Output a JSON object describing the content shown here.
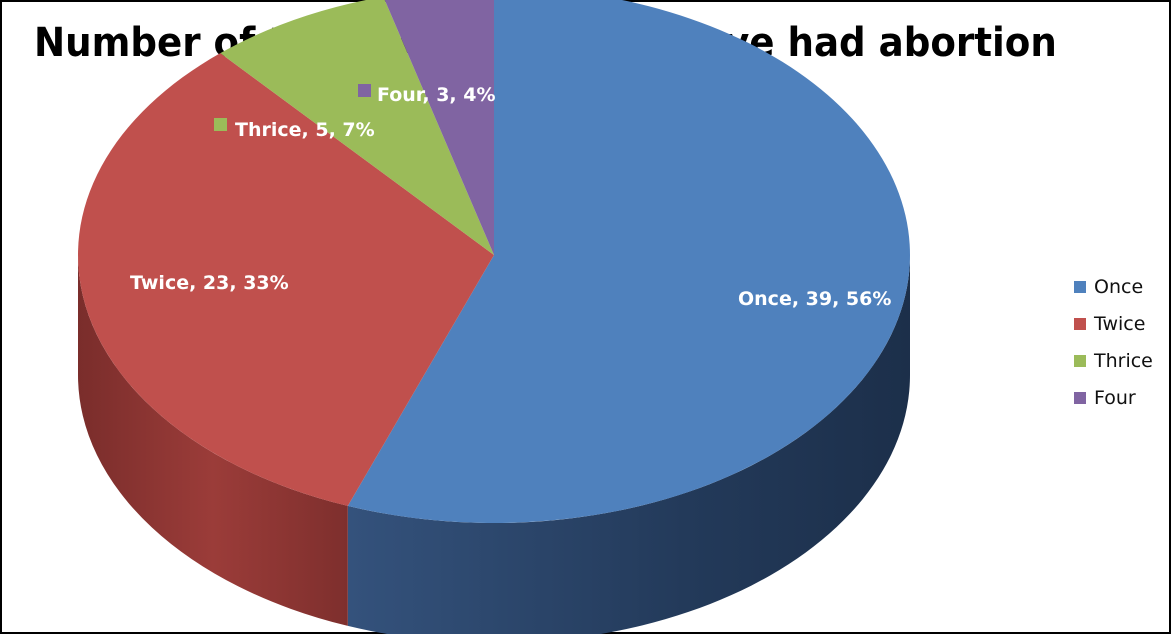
{
  "chart_data": {
    "type": "pie",
    "title": "Number of times respondents have had abortion",
    "categories": [
      "Once",
      "Twice",
      "Thrice",
      "Four"
    ],
    "values": [
      39,
      23,
      5,
      3
    ],
    "percentages": [
      56,
      33,
      7,
      4
    ],
    "data_labels": [
      "Once, 39, 56%",
      "Twice, 23, 33%",
      "Thrice, 5, 7%",
      "Four, 3, 4%"
    ],
    "colors": [
      "#4F81BD",
      "#C0504D",
      "#9BBB59",
      "#8064A2"
    ],
    "legend_position": "right",
    "style": "3d"
  }
}
